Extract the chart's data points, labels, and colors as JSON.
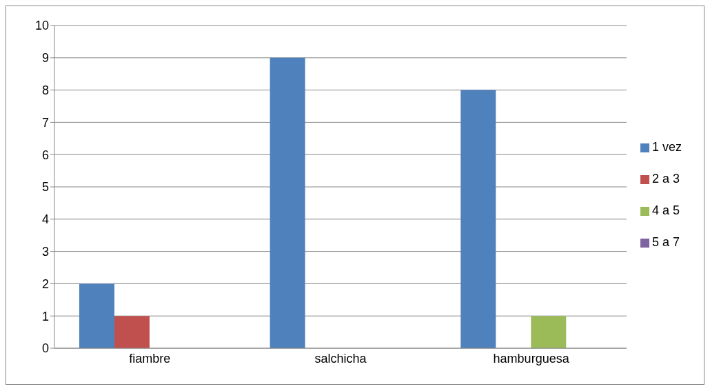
{
  "chart_data": {
    "type": "bar",
    "categories": [
      "fiambre",
      "salchicha",
      "hamburguesa"
    ],
    "series": [
      {
        "name": "1 vez",
        "color": "#4f81bd",
        "values": [
          2,
          9,
          8
        ]
      },
      {
        "name": "2 a 3",
        "color": "#c0504d",
        "values": [
          1,
          0,
          0
        ]
      },
      {
        "name": "4 a 5",
        "color": "#9bbb59",
        "values": [
          0,
          0,
          1
        ]
      },
      {
        "name": "5 a 7",
        "color": "#8064a2",
        "values": [
          0,
          0,
          0
        ]
      }
    ],
    "ylim": [
      0,
      10
    ],
    "yticks": [
      0,
      1,
      2,
      3,
      4,
      5,
      6,
      7,
      8,
      9,
      10
    ],
    "grid": "y",
    "legend": "right"
  }
}
